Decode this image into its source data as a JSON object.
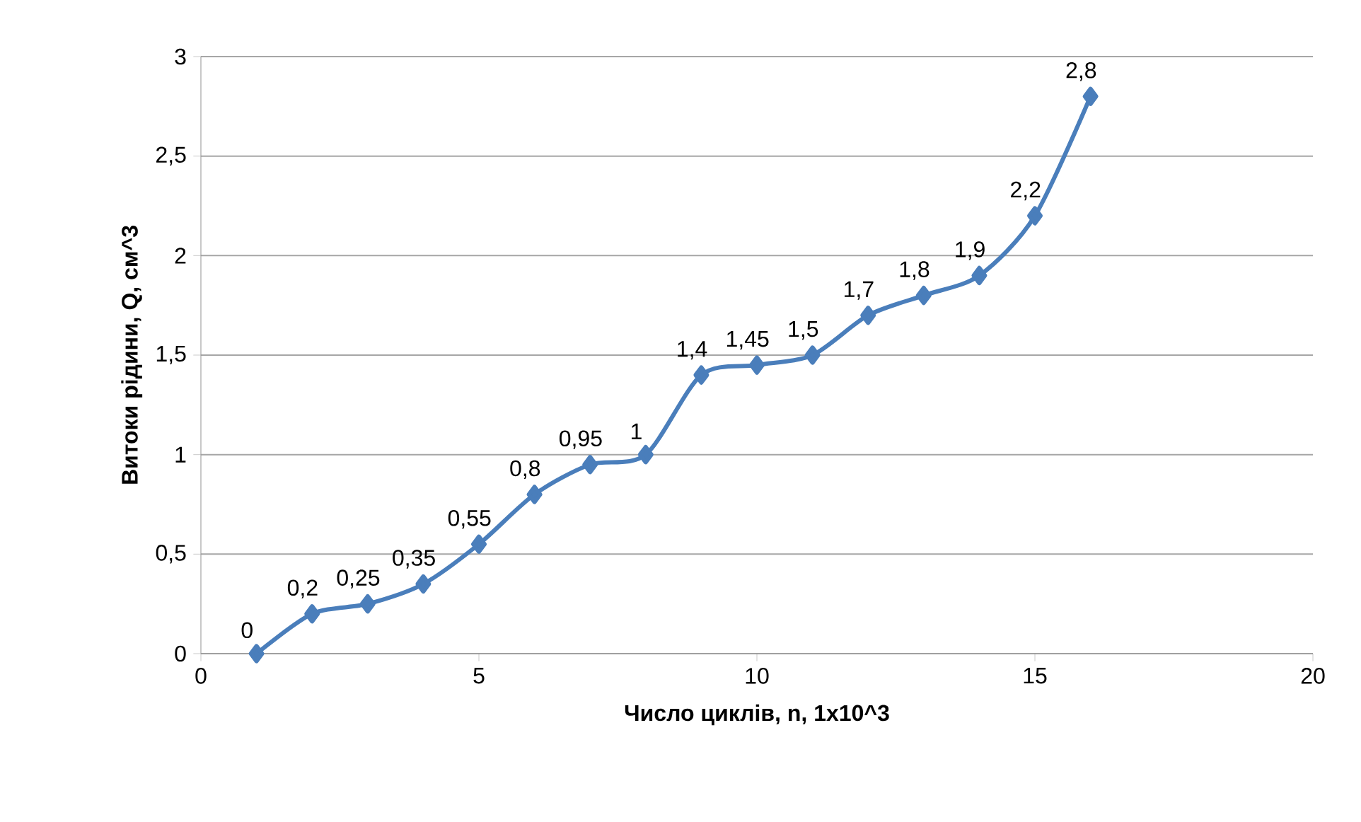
{
  "chart_data": {
    "type": "line",
    "xlabel": "Число циклів, n, 1x10^3",
    "ylabel": "Витоки рідини, Q, см^3",
    "x": [
      1,
      2,
      3,
      4,
      5,
      6,
      7,
      8,
      9,
      10,
      11,
      12,
      13,
      14,
      15,
      16
    ],
    "series": [
      {
        "color": "#4a7ebb",
        "values": [
          0,
          0.2,
          0.25,
          0.35,
          0.55,
          0.8,
          0.95,
          1,
          1.4,
          1.45,
          1.5,
          1.7,
          1.8,
          1.9,
          2.2,
          2.8
        ],
        "value_labels": [
          "0",
          "0,2",
          "0,25",
          "0,35",
          "0,55",
          "0,8",
          "0,95",
          "1",
          "1,4",
          "1,45",
          "1,5",
          "1,7",
          "1,8",
          "1,9",
          "2,2",
          "2,8"
        ]
      }
    ],
    "xlim": [
      0,
      20
    ],
    "xticks": [
      0,
      5,
      10,
      15,
      20
    ],
    "ylim": [
      0,
      3
    ],
    "yticks": [
      0,
      {
        "value": 0.5,
        "label": "0,5"
      },
      1,
      {
        "value": 1.5,
        "label": "1,5"
      },
      2,
      {
        "value": 2.5,
        "label": "2,5"
      },
      3
    ],
    "grid": "y",
    "marker": "diamond"
  }
}
